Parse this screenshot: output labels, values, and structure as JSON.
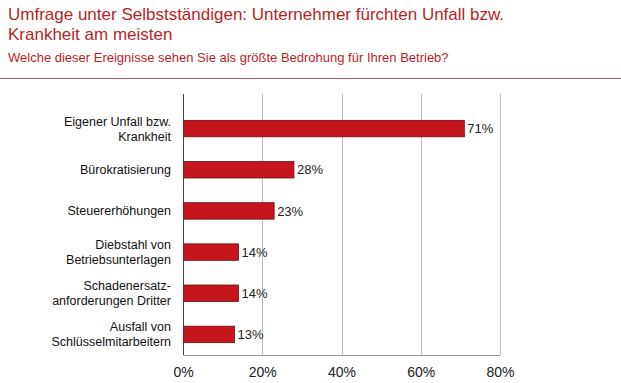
{
  "chart_data": {
    "type": "bar",
    "title": "Umfrage unter Selbstständigen: Unternehmer fürchten Unfall bzw.\nKrankheit am meisten",
    "subtitle": "Welche dieser Ereignisse sehen Sie als größte Bedrohung für Ihren Betrieb?",
    "categories": [
      "Eigener Unfall bzw.\nKrankheit",
      "Bürokratisierung",
      "Steuererhöhungen",
      "Diebstahl von\nBetriebsunterlagen",
      "Schadenersatz-\nanforderungen Dritter",
      "Ausfall von\nSchlüsselmitarbeitern"
    ],
    "values": [
      71,
      28,
      23,
      14,
      14,
      13
    ],
    "value_labels": [
      "71%",
      "28%",
      "23%",
      "14%",
      "14%",
      "13%"
    ],
    "color": "#c4161c",
    "orientation": "horizontal",
    "data_labels": true,
    "grid": true,
    "xlim": [
      0,
      80
    ],
    "xticks": [
      {
        "value": 0,
        "label": "0%"
      },
      {
        "value": 20,
        "label": "20%"
      },
      {
        "value": 40,
        "label": "40%"
      },
      {
        "value": 60,
        "label": "60%"
      },
      {
        "value": 80,
        "label": "80%"
      }
    ]
  }
}
